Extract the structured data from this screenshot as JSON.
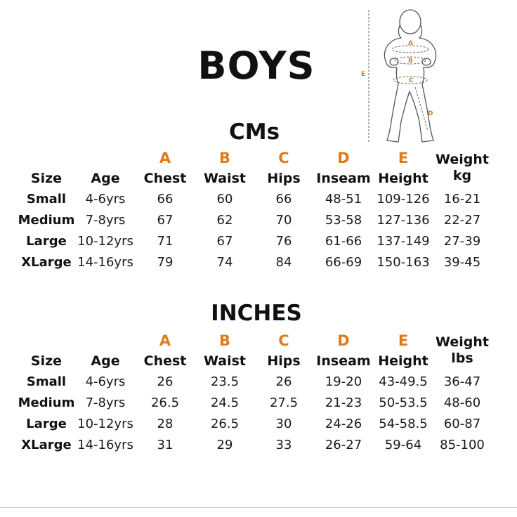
{
  "title": "BOYS",
  "diagram": {
    "labels": [
      "A",
      "B",
      "C",
      "D",
      "E"
    ],
    "accent_color": "#e07a1c"
  },
  "sections": [
    {
      "title": "CMs",
      "letters": [
        "A",
        "B",
        "C",
        "D",
        "E"
      ],
      "headers": [
        "Size",
        "Age",
        "Chest",
        "Waist",
        "Hips",
        "Inseam",
        "Height"
      ],
      "weight_header": [
        "Weight",
        "kg"
      ],
      "rows": [
        [
          "Small",
          "4-6yrs",
          "66",
          "60",
          "66",
          "48-51",
          "109-126",
          "16-21"
        ],
        [
          "Medium",
          "7-8yrs",
          "67",
          "62",
          "70",
          "53-58",
          "127-136",
          "22-27"
        ],
        [
          "Large",
          "10-12yrs",
          "71",
          "67",
          "76",
          "61-66",
          "137-149",
          "27-39"
        ],
        [
          "XLarge",
          "14-16yrs",
          "79",
          "74",
          "84",
          "66-69",
          "150-163",
          "39-45"
        ]
      ]
    },
    {
      "title": "INCHES",
      "letters": [
        "A",
        "B",
        "C",
        "D",
        "E"
      ],
      "headers": [
        "Size",
        "Age",
        "Chest",
        "Waist",
        "Hips",
        "Inseam",
        "Height"
      ],
      "weight_header": [
        "Weight",
        "lbs"
      ],
      "rows": [
        [
          "Small",
          "4-6yrs",
          "26",
          "23.5",
          "26",
          "19-20",
          "43-49.5",
          "36-47"
        ],
        [
          "Medium",
          "7-8yrs",
          "26.5",
          "24.5",
          "27.5",
          "21-23",
          "50-53.5",
          "48-60"
        ],
        [
          "Large",
          "10-12yrs",
          "28",
          "26.5",
          "30",
          "24-26",
          "54-58.5",
          "60-87"
        ],
        [
          "XLarge",
          "14-16yrs",
          "31",
          "29",
          "33",
          "26-27",
          "59-64",
          "85-100"
        ]
      ]
    }
  ]
}
